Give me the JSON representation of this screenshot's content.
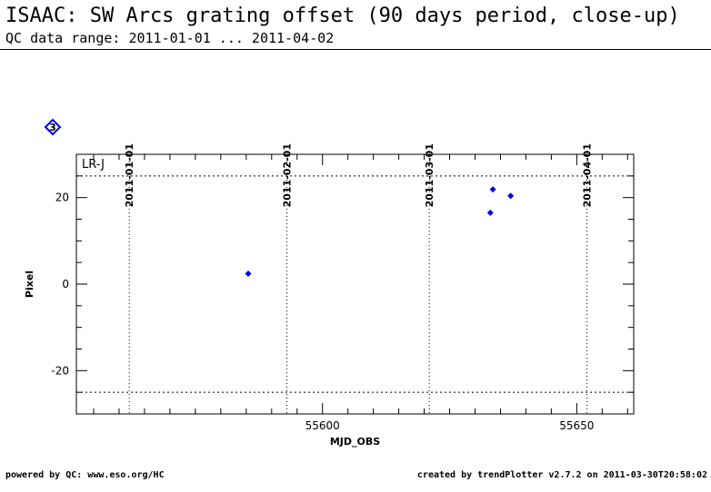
{
  "header": {
    "title": "ISAAC: SW Arcs grating offset (90 days period, close-up)",
    "subtitle": "QC data range: 2011-01-01 ... 2011-04-02"
  },
  "footer": {
    "left": "powered by QC: www.eso.org/HC",
    "right": "created by trendPlotter v2.7.2 on 2011-03-30T20:58:02"
  },
  "badge": {
    "label": "3",
    "color": "#0000ee"
  },
  "chart_data": {
    "type": "scatter",
    "xlabel": "MJD_OBS",
    "ylabel": "Pixel",
    "panel_label": "LR-J",
    "xlim": [
      55551.6,
      55661.2
    ],
    "ylim": [
      -30,
      30
    ],
    "xticks": [
      55600,
      55650
    ],
    "yticks": [
      -20,
      0,
      20
    ],
    "x_minor_step": 5,
    "y_minor_step": 5,
    "hlines": [
      25,
      -25
    ],
    "date_marks": [
      {
        "label": "2011-01-01",
        "mjd": 55562
      },
      {
        "label": "2011-02-01",
        "mjd": 55593
      },
      {
        "label": "2011-03-01",
        "mjd": 55621
      },
      {
        "label": "2011-04-01",
        "mjd": 55652
      }
    ],
    "marker_color": "#0000ee",
    "series": [
      {
        "x": [
          55585.4,
          55633.0,
          55633.5,
          55637.0
        ],
        "y": [
          2.4,
          16.5,
          21.9,
          20.4
        ]
      }
    ]
  }
}
